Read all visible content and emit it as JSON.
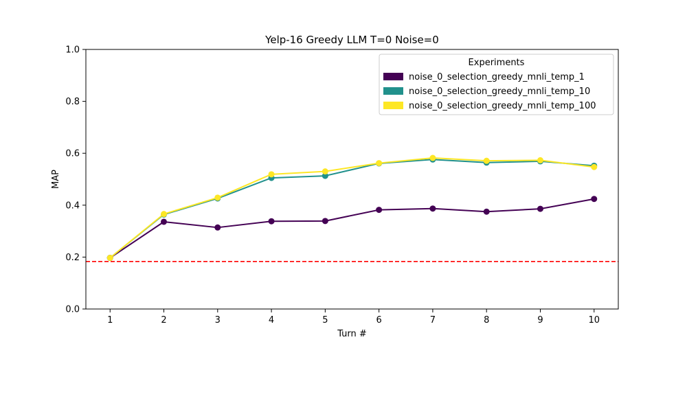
{
  "chart_data": {
    "type": "line",
    "title": "Yelp-16 Greedy LLM T=0 Noise=0",
    "xlabel": "Turn #",
    "ylabel": "MAP",
    "x": [
      1,
      2,
      3,
      4,
      5,
      6,
      7,
      8,
      9,
      10
    ],
    "xlim": [
      0.55,
      10.45
    ],
    "ylim": [
      0.0,
      1.0
    ],
    "yticks": [
      "0.0",
      "0.2",
      "0.4",
      "0.6",
      "0.8",
      "1.0"
    ],
    "xticks": [
      "1",
      "2",
      "3",
      "4",
      "5",
      "6",
      "7",
      "8",
      "9",
      "10"
    ],
    "grid": false,
    "legend": {
      "title": "Experiments",
      "placement": "top-right"
    },
    "series": [
      {
        "name": "noise_0_selection_greedy_mnli_temp_1",
        "color": "#440154",
        "values": [
          0.197,
          0.336,
          0.314,
          0.338,
          0.339,
          0.382,
          0.387,
          0.375,
          0.386,
          0.424
        ]
      },
      {
        "name": "noise_0_selection_greedy_mnli_temp_10",
        "color": "#21918c",
        "values": [
          0.197,
          0.364,
          0.426,
          0.505,
          0.513,
          0.561,
          0.576,
          0.564,
          0.569,
          0.552
        ]
      },
      {
        "name": "noise_0_selection_greedy_mnli_temp_100",
        "color": "#fde725",
        "values": [
          0.197,
          0.366,
          0.429,
          0.519,
          0.53,
          0.562,
          0.582,
          0.571,
          0.573,
          0.547
        ]
      }
    ],
    "baseline": {
      "value": 0.183,
      "color": "#ff0000",
      "style": "dashed"
    }
  }
}
